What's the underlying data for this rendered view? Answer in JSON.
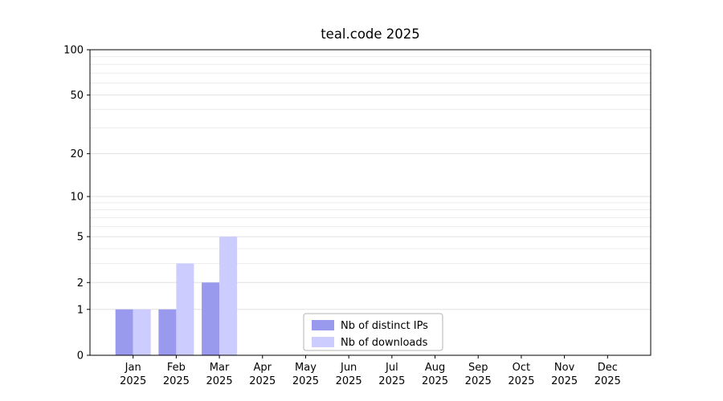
{
  "chart_data": {
    "type": "bar",
    "title": "teal.code 2025",
    "months": [
      "Jan",
      "Feb",
      "Mar",
      "Apr",
      "May",
      "Jun",
      "Jul",
      "Aug",
      "Sep",
      "Oct",
      "Nov",
      "Dec"
    ],
    "year": "2025",
    "series": [
      {
        "name": "Nb of distinct IPs",
        "color": "#9999ee",
        "values": [
          1,
          1,
          2,
          0,
          0,
          0,
          0,
          0,
          0,
          0,
          0,
          0
        ]
      },
      {
        "name": "Nb of downloads",
        "color": "#ccccff",
        "values": [
          1,
          3,
          5,
          0,
          0,
          0,
          0,
          0,
          0,
          0,
          0,
          0
        ]
      }
    ],
    "yticks": [
      0,
      1,
      2,
      5,
      10,
      20,
      50,
      100
    ],
    "minor_gridlines": [
      1,
      2,
      3,
      4,
      5,
      6,
      7,
      8,
      9,
      10,
      20,
      30,
      40,
      50,
      60,
      70,
      80,
      90,
      100
    ],
    "ylim": [
      0,
      100
    ],
    "scale": "log1p",
    "grid": true,
    "legend_position": "lower center"
  },
  "colors": {
    "background": "#ffffff",
    "axis": "#000000",
    "grid_major": "#e0e0e0",
    "grid_minor": "#ececec",
    "legend_border": "#b3b3b3",
    "text": "#000000"
  }
}
